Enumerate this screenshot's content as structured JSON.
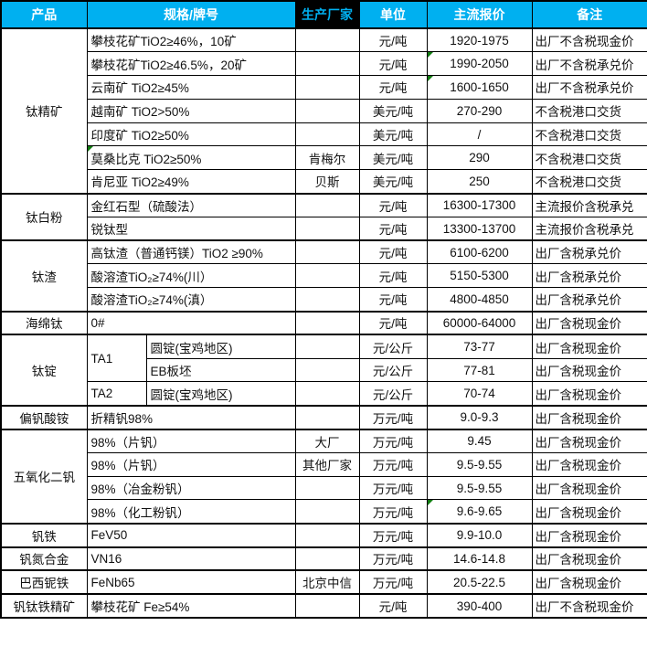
{
  "colors": {
    "header_bg": "#00B0F0",
    "header_text": "#FFFFFF",
    "manufacturer_header_bg": "#000000",
    "manufacturer_header_text": "#00B0F0",
    "border": "#000000",
    "comment_triangle_green": "#107C10"
  },
  "table": {
    "header": {
      "product": "产品",
      "spec": "规格/牌号",
      "manufacturer": "生产厂家",
      "unit": "单位",
      "price": "主流报价",
      "note": "备注"
    },
    "groups": [
      {
        "product": "钛精矿",
        "rows": [
          {
            "spec": "攀枝花矿TiO2≥46%，10矿",
            "maker": "",
            "unit": "元/吨",
            "price": "1920-1975",
            "note": "出厂不含税现金价"
          },
          {
            "spec": "攀枝花矿TiO2≥46.5%，20矿",
            "maker": "",
            "unit": "元/吨",
            "price": "1990-2050",
            "note": "出厂不含税承兑价",
            "price_flag": true
          },
          {
            "spec": "云南矿 TiO2≥45%",
            "maker": "",
            "unit": "元/吨",
            "price": "1600-1650",
            "note": "出厂不含税承兑价",
            "price_flag": true
          },
          {
            "spec": "越南矿 TiO2>50%",
            "maker": "",
            "unit": "美元/吨",
            "price": "270-290",
            "note": "不含税港口交货"
          },
          {
            "spec": "印度矿 TiO2≥50%",
            "maker": "",
            "unit": "美元/吨",
            "price": "/",
            "note": "不含税港口交货"
          },
          {
            "spec": "莫桑比克 TiO2≥50%",
            "maker": "肯梅尔",
            "unit": "美元/吨",
            "price": "290",
            "note": "不含税港口交货",
            "spec_flag": true
          },
          {
            "spec": "肯尼亚 TiO2≥49%",
            "maker": "贝斯",
            "unit": "美元/吨",
            "price": "250",
            "note": "不含税港口交货"
          }
        ]
      },
      {
        "product": "钛白粉",
        "rows": [
          {
            "spec": "金红石型（硫酸法）",
            "maker": "",
            "unit": "元/吨",
            "price": "16300-17300",
            "note": "主流报价含税承兑"
          },
          {
            "spec": "锐钛型",
            "maker": "",
            "unit": "元/吨",
            "price": "13300-13700",
            "note": "主流报价含税承兑"
          }
        ]
      },
      {
        "product": "钛渣",
        "rows": [
          {
            "spec": "高钛渣（普通钙镁）TiO2 ≥90%",
            "maker": "",
            "unit": "元/吨",
            "price": "6100-6200",
            "note": "出厂含税承兑价"
          },
          {
            "spec": "酸溶渣TiO₂≥74%(川）",
            "maker": "",
            "unit": "元/吨",
            "price": "5150-5300",
            "note": "出厂含税承兑价"
          },
          {
            "spec": "酸溶渣TiO₂≥74%(滇）",
            "maker": "",
            "unit": "元/吨",
            "price": "4800-4850",
            "note": "出厂含税承兑价"
          }
        ]
      },
      {
        "product": "海绵钛",
        "rows": [
          {
            "spec": "0#",
            "maker": "",
            "unit": "元/吨",
            "price": "60000-64000",
            "note": "出厂含税现金价"
          }
        ]
      },
      {
        "product": "钛锭",
        "rows": [
          {
            "grade": "TA1",
            "spec": "圆锭(宝鸡地区)",
            "maker": "",
            "unit": "元/公斤",
            "price": "73-77",
            "note": "出厂含税现金价"
          },
          {
            "grade": "",
            "spec": "EB板坯",
            "maker": "",
            "unit": "元/公斤",
            "price": "77-81",
            "note": "出厂含税现金价"
          },
          {
            "grade": "TA2",
            "spec": "圆锭(宝鸡地区)",
            "maker": "",
            "unit": "元/公斤",
            "price": "70-74",
            "note": "出厂含税现金价"
          }
        ]
      },
      {
        "product": "偏钒酸铵",
        "rows": [
          {
            "spec": "折精钒98%",
            "maker": "",
            "unit": "万元/吨",
            "price": "9.0-9.3",
            "note": "出厂含税现金价"
          }
        ]
      },
      {
        "product": "五氧化二钒",
        "rows": [
          {
            "spec": "98%（片钒）",
            "maker": "大厂",
            "unit": "万元/吨",
            "price": "9.45",
            "note": "出厂含税现金价"
          },
          {
            "spec": "98%（片钒）",
            "maker": "其他厂家",
            "unit": "万元/吨",
            "price": "9.5-9.55",
            "note": "出厂含税现金价"
          },
          {
            "spec": "98%（冶金粉钒）",
            "maker": "",
            "unit": "万元/吨",
            "price": "9.5-9.55",
            "note": "出厂含税现金价"
          },
          {
            "spec": "98%（化工粉钒）",
            "maker": "",
            "unit": "万元/吨",
            "price": "9.6-9.65",
            "note": "出厂含税现金价",
            "price_flag": true
          }
        ]
      },
      {
        "product": "钒铁",
        "rows": [
          {
            "spec": "FeV50",
            "maker": "",
            "unit": "万元/吨",
            "price": "9.9-10.0",
            "note": "出厂含税现金价"
          }
        ]
      },
      {
        "product": "钒氮合金",
        "rows": [
          {
            "spec": "VN16",
            "maker": "",
            "unit": "万元/吨",
            "price": "14.6-14.8",
            "note": "出厂含税现金价"
          }
        ]
      },
      {
        "product": "巴西铌铁",
        "rows": [
          {
            "spec": "FeNb65",
            "maker": "北京中信",
            "unit": "万元/吨",
            "price": "20.5-22.5",
            "note": "出厂含税现金价"
          }
        ]
      },
      {
        "product": "钒钛铁精矿",
        "rows": [
          {
            "spec": "攀枝花矿 Fe≥54%",
            "maker": "",
            "unit": "元/吨",
            "price": "390-400",
            "note": "出厂不含税现金价"
          }
        ]
      }
    ]
  }
}
